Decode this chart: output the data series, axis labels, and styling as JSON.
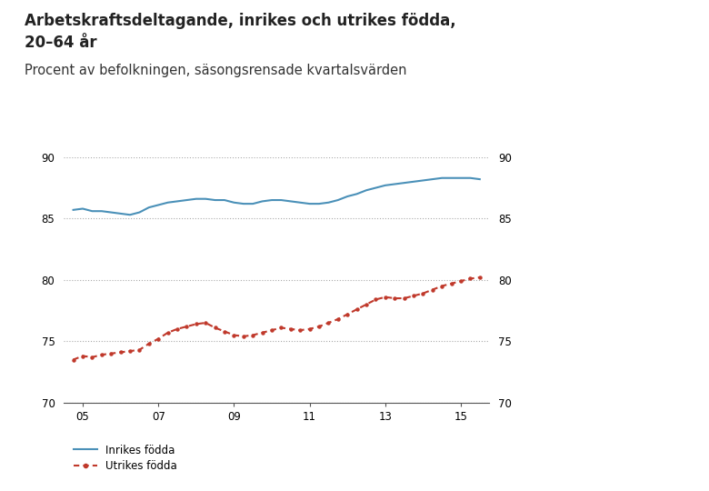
{
  "title_line1": "Arbetskraftsdeltagande, inrikes och utrikes födda,",
  "title_line2": "20–64 år",
  "subtitle": "Procent av befolkningen, säsongsrensade kvartalsvärden",
  "title_fontsize": 12,
  "subtitle_fontsize": 10.5,
  "background_color": "#ffffff",
  "plot_bg_color": "#ffffff",
  "ylim": [
    70,
    90
  ],
  "yticks": [
    70,
    75,
    80,
    85,
    90
  ],
  "xlabel_ticks": [
    "05",
    "07",
    "09",
    "11",
    "13",
    "15"
  ],
  "legend_inrikes": "Inrikes födda",
  "legend_utrikes": "Utrikes födda",
  "inrikes_color": "#4a90b8",
  "utrikes_color": "#c0392b",
  "inrikes_values": [
    85.7,
    85.8,
    85.6,
    85.6,
    85.5,
    85.4,
    85.3,
    85.5,
    85.9,
    86.1,
    86.3,
    86.4,
    86.5,
    86.6,
    86.6,
    86.5,
    86.5,
    86.3,
    86.2,
    86.2,
    86.4,
    86.5,
    86.5,
    86.4,
    86.3,
    86.2,
    86.2,
    86.3,
    86.5,
    86.8,
    87.0,
    87.3,
    87.5,
    87.7,
    87.8,
    87.9,
    88.0,
    88.1,
    88.2,
    88.3,
    88.3,
    88.3,
    88.3,
    88.2
  ],
  "utrikes_values": [
    73.5,
    73.8,
    73.7,
    73.9,
    74.0,
    74.1,
    74.2,
    74.3,
    74.8,
    75.2,
    75.7,
    76.0,
    76.2,
    76.4,
    76.5,
    76.1,
    75.8,
    75.5,
    75.4,
    75.5,
    75.7,
    75.9,
    76.1,
    76.0,
    75.9,
    76.0,
    76.2,
    76.5,
    76.8,
    77.2,
    77.6,
    78.0,
    78.4,
    78.6,
    78.5,
    78.5,
    78.7,
    78.9,
    79.2,
    79.5,
    79.7,
    79.9,
    80.1,
    80.2
  ],
  "n_quarters": 44,
  "start_year": 2004.75,
  "xlim_left": 2004.5,
  "xlim_right": 2015.75
}
